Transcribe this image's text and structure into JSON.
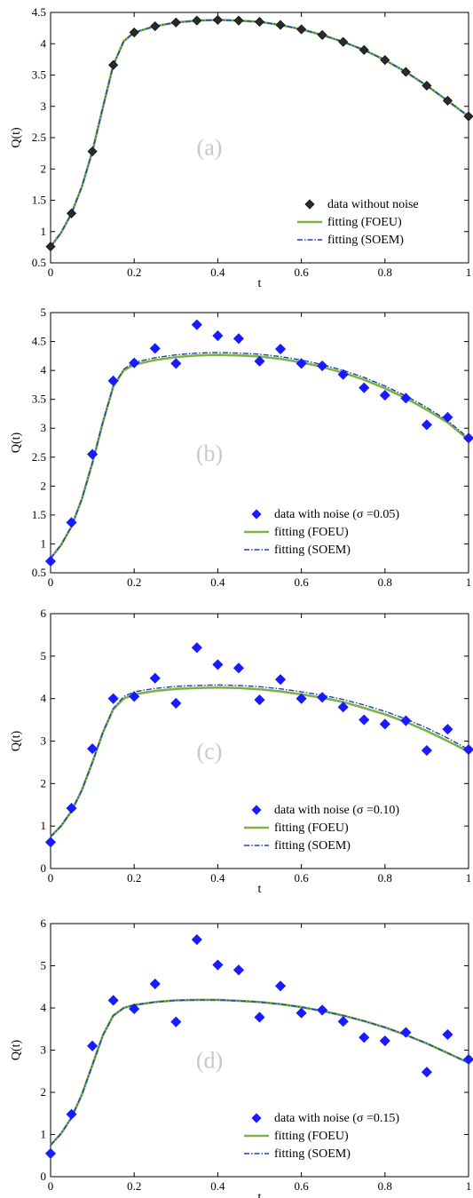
{
  "colors": {
    "foeu": "#7cb342",
    "soem": "#1f3fbf",
    "noise_marker": "#1a1aff",
    "clean_marker": "#111111",
    "clean_marker_fill": "#2a2a2a",
    "panel_label": "#c8c8c8"
  },
  "chart_data": [
    {
      "type": "line",
      "panel_label": "(a)",
      "xlabel": "t",
      "ylabel": "Q(t)",
      "xlim": [
        0,
        1
      ],
      "ylim": [
        0.5,
        4.5
      ],
      "xticks": [
        0,
        0.2,
        0.4,
        0.6,
        0.8,
        1
      ],
      "xtick_labels": [
        "0",
        "0.2",
        "0.4",
        "0.6",
        "0.8",
        "1"
      ],
      "yticks": [
        0.5,
        1,
        1.5,
        2,
        2.5,
        3,
        3.5,
        4,
        4.5
      ],
      "ytick_labels": [
        "0.5",
        "1",
        "1.5",
        "2",
        "2.5",
        "3",
        "3.5",
        "4",
        "4.5"
      ],
      "legend_position": "bottom-right",
      "marker_style": "clean",
      "legend": [
        "data without noise",
        "fitting (FOEU)",
        "fitting (SOEM)"
      ],
      "data_x": [
        0,
        0.05,
        0.1,
        0.15,
        0.2,
        0.25,
        0.3,
        0.35,
        0.4,
        0.45,
        0.5,
        0.55,
        0.6,
        0.65,
        0.7,
        0.75,
        0.8,
        0.85,
        0.9,
        0.95,
        1
      ],
      "data_y": [
        0.76,
        1.29,
        2.28,
        3.66,
        4.18,
        4.28,
        4.34,
        4.37,
        4.38,
        4.37,
        4.35,
        4.3,
        4.23,
        4.14,
        4.03,
        3.9,
        3.74,
        3.55,
        3.33,
        3.09,
        2.84
      ],
      "series": [
        {
          "name": "fitting (FOEU)",
          "x": [
            0,
            0.025,
            0.05,
            0.075,
            0.1,
            0.125,
            0.15,
            0.175,
            0.2,
            0.25,
            0.3,
            0.35,
            0.4,
            0.45,
            0.5,
            0.55,
            0.6,
            0.65,
            0.7,
            0.75,
            0.8,
            0.85,
            0.9,
            0.95,
            1
          ],
          "y": [
            0.76,
            0.98,
            1.29,
            1.72,
            2.28,
            2.98,
            3.66,
            4.04,
            4.18,
            4.28,
            4.34,
            4.37,
            4.38,
            4.37,
            4.35,
            4.3,
            4.23,
            4.14,
            4.03,
            3.9,
            3.74,
            3.55,
            3.33,
            3.09,
            2.84
          ]
        },
        {
          "name": "fitting (SOEM)",
          "x": [
            0,
            0.025,
            0.05,
            0.075,
            0.1,
            0.125,
            0.15,
            0.175,
            0.2,
            0.25,
            0.3,
            0.35,
            0.4,
            0.45,
            0.5,
            0.55,
            0.6,
            0.65,
            0.7,
            0.75,
            0.8,
            0.85,
            0.9,
            0.95,
            1
          ],
          "y": [
            0.76,
            0.98,
            1.29,
            1.72,
            2.28,
            2.98,
            3.66,
            4.04,
            4.18,
            4.28,
            4.34,
            4.37,
            4.38,
            4.37,
            4.35,
            4.3,
            4.23,
            4.14,
            4.03,
            3.9,
            3.74,
            3.55,
            3.33,
            3.09,
            2.84
          ]
        }
      ]
    },
    {
      "type": "line",
      "panel_label": "(b)",
      "xlabel": "",
      "ylabel": "Q(t)",
      "xlim": [
        0,
        1
      ],
      "ylim": [
        0.5,
        5
      ],
      "xticks": [
        0,
        0.2,
        0.4,
        0.6,
        0.8,
        1
      ],
      "xtick_labels": [
        "0",
        "0.2",
        "0.4",
        "0.6",
        "0.8",
        "1"
      ],
      "yticks": [
        0.5,
        1,
        1.5,
        2,
        2.5,
        3,
        3.5,
        4,
        4.5,
        5
      ],
      "ytick_labels": [
        "0.5",
        "1",
        "1.5",
        "2",
        "2.5",
        "3",
        "3.5",
        "4",
        "4.5",
        "5"
      ],
      "legend_position": "bottom-right",
      "marker_style": "noise",
      "legend": [
        "data with noise (σ =0.05)",
        "fitting (FOEU)",
        "fitting (SOEM)"
      ],
      "data_x": [
        0,
        0.05,
        0.1,
        0.15,
        0.2,
        0.25,
        0.3,
        0.35,
        0.4,
        0.45,
        0.5,
        0.55,
        0.6,
        0.65,
        0.7,
        0.75,
        0.8,
        0.85,
        0.9,
        0.95,
        1
      ],
      "data_y": [
        0.7,
        1.37,
        2.55,
        3.82,
        4.13,
        4.38,
        4.12,
        4.79,
        4.6,
        4.55,
        4.16,
        4.37,
        4.12,
        4.08,
        3.93,
        3.7,
        3.57,
        3.52,
        3.06,
        3.19,
        2.83
      ],
      "series": [
        {
          "name": "fitting (FOEU)",
          "x": [
            0,
            0.025,
            0.05,
            0.075,
            0.1,
            0.125,
            0.15,
            0.175,
            0.2,
            0.25,
            0.3,
            0.35,
            0.4,
            0.45,
            0.5,
            0.55,
            0.6,
            0.65,
            0.7,
            0.75,
            0.8,
            0.85,
            0.9,
            0.95,
            1
          ],
          "y": [
            0.75,
            0.98,
            1.3,
            1.78,
            2.4,
            3.1,
            3.72,
            4.0,
            4.1,
            4.18,
            4.23,
            4.26,
            4.27,
            4.26,
            4.24,
            4.2,
            4.14,
            4.06,
            3.96,
            3.84,
            3.69,
            3.52,
            3.32,
            3.1,
            2.8
          ]
        },
        {
          "name": "fitting (SOEM)",
          "x": [
            0,
            0.025,
            0.05,
            0.075,
            0.1,
            0.125,
            0.15,
            0.175,
            0.2,
            0.25,
            0.3,
            0.35,
            0.4,
            0.45,
            0.5,
            0.55,
            0.6,
            0.65,
            0.7,
            0.75,
            0.8,
            0.85,
            0.9,
            0.95,
            1
          ],
          "y": [
            0.75,
            0.98,
            1.3,
            1.78,
            2.4,
            3.1,
            3.73,
            4.02,
            4.14,
            4.22,
            4.27,
            4.3,
            4.31,
            4.3,
            4.28,
            4.24,
            4.18,
            4.1,
            4.0,
            3.88,
            3.73,
            3.56,
            3.36,
            3.13,
            2.83
          ]
        }
      ]
    },
    {
      "type": "line",
      "panel_label": "(c)",
      "xlabel": "t",
      "ylabel": "Q(t)",
      "xlim": [
        0,
        1
      ],
      "ylim": [
        0,
        6
      ],
      "xticks": [
        0,
        0.2,
        0.4,
        0.6,
        0.8,
        1
      ],
      "xtick_labels": [
        "0",
        "0.2",
        "0.4",
        "0.6",
        "0.8",
        "1"
      ],
      "yticks": [
        0,
        1,
        2,
        3,
        4,
        5,
        6
      ],
      "ytick_labels": [
        "0",
        "1",
        "2",
        "3",
        "4",
        "5",
        "6"
      ],
      "legend_position": "bottom-right",
      "marker_style": "noise",
      "legend": [
        "data with noise (σ =0.10)",
        "fitting (FOEU)",
        "fitting (SOEM)"
      ],
      "data_x": [
        0,
        0.05,
        0.1,
        0.15,
        0.2,
        0.25,
        0.3,
        0.35,
        0.4,
        0.45,
        0.5,
        0.55,
        0.6,
        0.65,
        0.7,
        0.75,
        0.8,
        0.85,
        0.9,
        0.95,
        1
      ],
      "data_y": [
        0.62,
        1.42,
        2.82,
        4.0,
        4.05,
        4.48,
        3.89,
        5.2,
        4.8,
        4.72,
        3.97,
        4.45,
        4.0,
        4.03,
        3.8,
        3.5,
        3.4,
        3.48,
        2.78,
        3.28,
        2.8
      ],
      "series": [
        {
          "name": "fitting (FOEU)",
          "x": [
            0,
            0.025,
            0.05,
            0.075,
            0.1,
            0.125,
            0.15,
            0.175,
            0.2,
            0.25,
            0.3,
            0.35,
            0.4,
            0.45,
            0.5,
            0.55,
            0.6,
            0.65,
            0.7,
            0.75,
            0.8,
            0.85,
            0.9,
            0.95,
            1
          ],
          "y": [
            0.75,
            1.0,
            1.35,
            1.85,
            2.5,
            3.2,
            3.75,
            4.0,
            4.1,
            4.18,
            4.23,
            4.25,
            4.26,
            4.25,
            4.22,
            4.17,
            4.1,
            4.02,
            3.92,
            3.78,
            3.63,
            3.45,
            3.24,
            3.0,
            2.75
          ]
        },
        {
          "name": "fitting (SOEM)",
          "x": [
            0,
            0.025,
            0.05,
            0.075,
            0.1,
            0.125,
            0.15,
            0.175,
            0.2,
            0.25,
            0.3,
            0.35,
            0.4,
            0.45,
            0.5,
            0.55,
            0.6,
            0.65,
            0.7,
            0.75,
            0.8,
            0.85,
            0.9,
            0.95,
            1
          ],
          "y": [
            0.75,
            1.0,
            1.35,
            1.85,
            2.5,
            3.2,
            3.77,
            4.05,
            4.16,
            4.24,
            4.29,
            4.31,
            4.32,
            4.31,
            4.28,
            4.23,
            4.16,
            4.08,
            3.98,
            3.85,
            3.7,
            3.52,
            3.31,
            3.07,
            2.8
          ]
        }
      ]
    },
    {
      "type": "line",
      "panel_label": "(d)",
      "xlabel": "t",
      "ylabel": "Q(t)",
      "xlim": [
        0,
        1
      ],
      "ylim": [
        0,
        6
      ],
      "xticks": [
        0,
        0.2,
        0.4,
        0.6,
        0.8,
        1
      ],
      "xtick_labels": [
        "0",
        "0.2",
        "0.4",
        "0.6",
        "0.8",
        "1"
      ],
      "yticks": [
        0,
        1,
        2,
        3,
        4,
        5,
        6
      ],
      "ytick_labels": [
        "0",
        "1",
        "2",
        "3",
        "4",
        "5",
        "6"
      ],
      "legend_position": "bottom-right",
      "marker_style": "noise",
      "legend": [
        "data with noise (σ =0.15)",
        "fitting (FOEU)",
        "fitting (SOEM)"
      ],
      "data_x": [
        0,
        0.05,
        0.1,
        0.15,
        0.2,
        0.25,
        0.3,
        0.35,
        0.4,
        0.45,
        0.5,
        0.55,
        0.6,
        0.65,
        0.7,
        0.75,
        0.8,
        0.85,
        0.9,
        0.95,
        1
      ],
      "data_y": [
        0.55,
        1.48,
        3.1,
        4.18,
        3.98,
        4.57,
        3.67,
        5.62,
        5.02,
        4.9,
        3.78,
        4.52,
        3.88,
        3.95,
        3.68,
        3.3,
        3.22,
        3.42,
        2.48,
        3.37,
        2.78
      ],
      "series": [
        {
          "name": "fitting (FOEU)",
          "x": [
            0,
            0.025,
            0.05,
            0.075,
            0.1,
            0.125,
            0.15,
            0.175,
            0.2,
            0.25,
            0.3,
            0.35,
            0.4,
            0.45,
            0.5,
            0.55,
            0.6,
            0.65,
            0.7,
            0.75,
            0.8,
            0.85,
            0.9,
            0.95,
            1
          ],
          "y": [
            0.75,
            1.02,
            1.4,
            1.95,
            2.65,
            3.35,
            3.82,
            4.0,
            4.07,
            4.14,
            4.18,
            4.19,
            4.19,
            4.17,
            4.14,
            4.09,
            4.02,
            3.93,
            3.82,
            3.69,
            3.54,
            3.36,
            3.16,
            2.93,
            2.7
          ]
        },
        {
          "name": "fitting (SOEM)",
          "x": [
            0,
            0.025,
            0.05,
            0.075,
            0.1,
            0.125,
            0.15,
            0.175,
            0.2,
            0.25,
            0.3,
            0.35,
            0.4,
            0.45,
            0.5,
            0.55,
            0.6,
            0.65,
            0.7,
            0.75,
            0.8,
            0.85,
            0.9,
            0.95,
            1
          ],
          "y": [
            0.75,
            1.02,
            1.4,
            1.95,
            2.65,
            3.35,
            3.82,
            4.0,
            4.07,
            4.14,
            4.18,
            4.19,
            4.19,
            4.17,
            4.14,
            4.09,
            4.02,
            3.93,
            3.82,
            3.69,
            3.54,
            3.36,
            3.16,
            2.93,
            2.7
          ]
        }
      ]
    }
  ]
}
